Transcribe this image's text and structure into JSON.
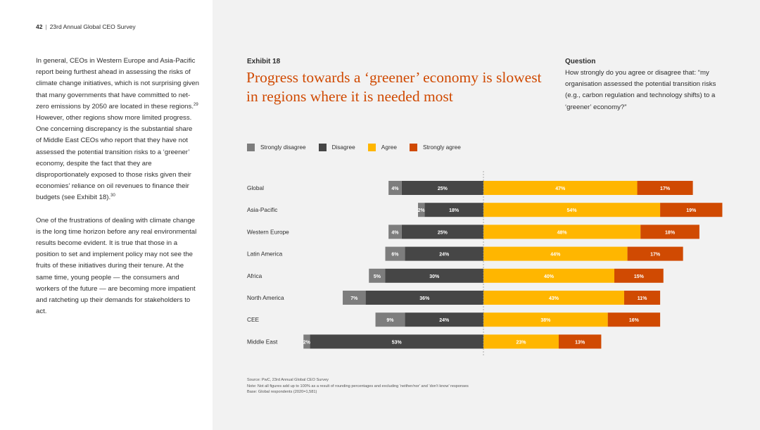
{
  "page": {
    "number": "42",
    "separator": "|",
    "publication": "23rd Annual Global CEO Survey"
  },
  "body": {
    "para1": "In general, CEOs in Western Europe and Asia-Pacific report being furthest ahead in assessing the risks of climate change initiatives, which is not surprising given that many governments that have committed to net-zero emissions by 2050 are located in these regions.",
    "para1_ref": "29",
    "para1_cont": " However, other regions show more limited progress. One concerning discrepancy is the substantial share of Middle East CEOs who report that they have not assessed the potential transition risks to a ‘greener’ economy, despite the fact that they are disproportionately exposed to those risks given their economies’ reliance on oil revenues to finance their budgets (see Exhibit 18).",
    "para1_ref2": "30",
    "para2": "One of the frustrations of dealing with climate change is the long time horizon before any real environmental results become evident. It is true that those in a position to set and implement policy may not see the fruits of these initiatives during their tenure. At the same time, young people — the consumers and workers of the future — are becoming more impatient and ratcheting up their demands for stakeholders to act."
  },
  "exhibit": {
    "label": "Exhibit 18",
    "title": "Progress towards a ‘greener’ economy is slowest in regions where it is needed most"
  },
  "question": {
    "label": "Question",
    "text": "How strongly do you agree or disagree that: “my organisation assessed the potential transition risks (e.g., carbon regulation and technology shifts) to a ‘greener’ economy?”"
  },
  "colors": {
    "strongly_disagree": "#7d7d7d",
    "disagree": "#464646",
    "agree": "#ffb600",
    "strongly_agree": "#d04a02",
    "label_light": "#ffffff",
    "label_dark": "#2d2d2d"
  },
  "chart_data": {
    "type": "bar",
    "orientation": "horizontal",
    "stacked": "diverging",
    "title": "Progress towards a ‘greener’ economy is slowest in regions where it is needed most",
    "categories": [
      "Global",
      "Asia-Pacific",
      "Western Europe",
      "Latin America",
      "Africa",
      "North America",
      "CEE",
      "Middle East"
    ],
    "series": [
      {
        "name": "Strongly disagree",
        "side": "negative",
        "values": [
          4,
          2,
          4,
          6,
          5,
          7,
          9,
          2
        ]
      },
      {
        "name": "Disagree",
        "side": "negative",
        "values": [
          25,
          18,
          25,
          24,
          30,
          36,
          24,
          53
        ]
      },
      {
        "name": "Agree",
        "side": "positive",
        "values": [
          47,
          54,
          48,
          44,
          40,
          43,
          38,
          23
        ]
      },
      {
        "name": "Strongly agree",
        "side": "positive",
        "values": [
          17,
          19,
          18,
          17,
          15,
          11,
          16,
          13
        ]
      }
    ],
    "value_suffix": "%",
    "legend": [
      "Strongly disagree",
      "Disagree",
      "Agree",
      "Strongly agree"
    ],
    "legend_position": "top-left",
    "grid": false,
    "baseline": "dashed center line at 0"
  },
  "source": {
    "line1": "Source: PwC, 23rd Annual Global CEO Survey",
    "line2": "Note: Not all figures add up to 100% as a result of rounding percentages and excluding ‘neither/nor’ and ‘don’t know’ responses",
    "line3": "Base: Global respondents (2020=1,581)"
  }
}
